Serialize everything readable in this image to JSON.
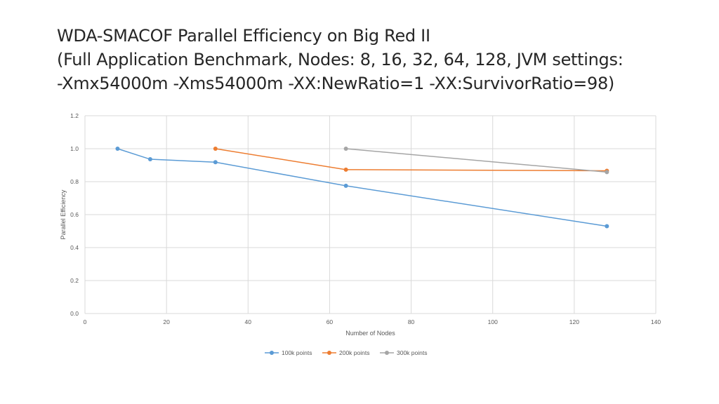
{
  "title": {
    "line1": "WDA-SMACOF Parallel Efficiency on Big Red II",
    "line2": "(Full Application Benchmark, Nodes: 8, 16, 32, 64, 128, JVM settings:",
    "line3": "-Xmx54000m -Xms54000m -XX:NewRatio=1 -XX:SurvivorRatio=98)"
  },
  "chart_data": {
    "type": "line",
    "xlabel": "Number of Nodes",
    "ylabel": "Parallel Efficiency",
    "xlim": [
      0,
      140
    ],
    "ylim": [
      0,
      1.2
    ],
    "xticks": [
      "0",
      "20",
      "40",
      "60",
      "80",
      "100",
      "120",
      "140"
    ],
    "yticks": [
      "0.0",
      "0.2",
      "0.4",
      "0.6",
      "0.8",
      "1.0",
      "1.2"
    ],
    "grid": true,
    "legend_position": "bottom",
    "series": [
      {
        "name": "100k points",
        "color": "#5B9BD5",
        "points": [
          [
            8,
            1.0
          ],
          [
            16,
            0.936
          ],
          [
            32,
            0.918
          ],
          [
            64,
            0.775
          ],
          [
            128,
            0.53
          ]
        ]
      },
      {
        "name": "200k points",
        "color": "#ED7D31",
        "points": [
          [
            32,
            1.0
          ],
          [
            64,
            0.873
          ],
          [
            128,
            0.866
          ]
        ]
      },
      {
        "name": "300k points",
        "color": "#A5A5A5",
        "points": [
          [
            64,
            1.0
          ],
          [
            128,
            0.858
          ]
        ]
      }
    ]
  }
}
